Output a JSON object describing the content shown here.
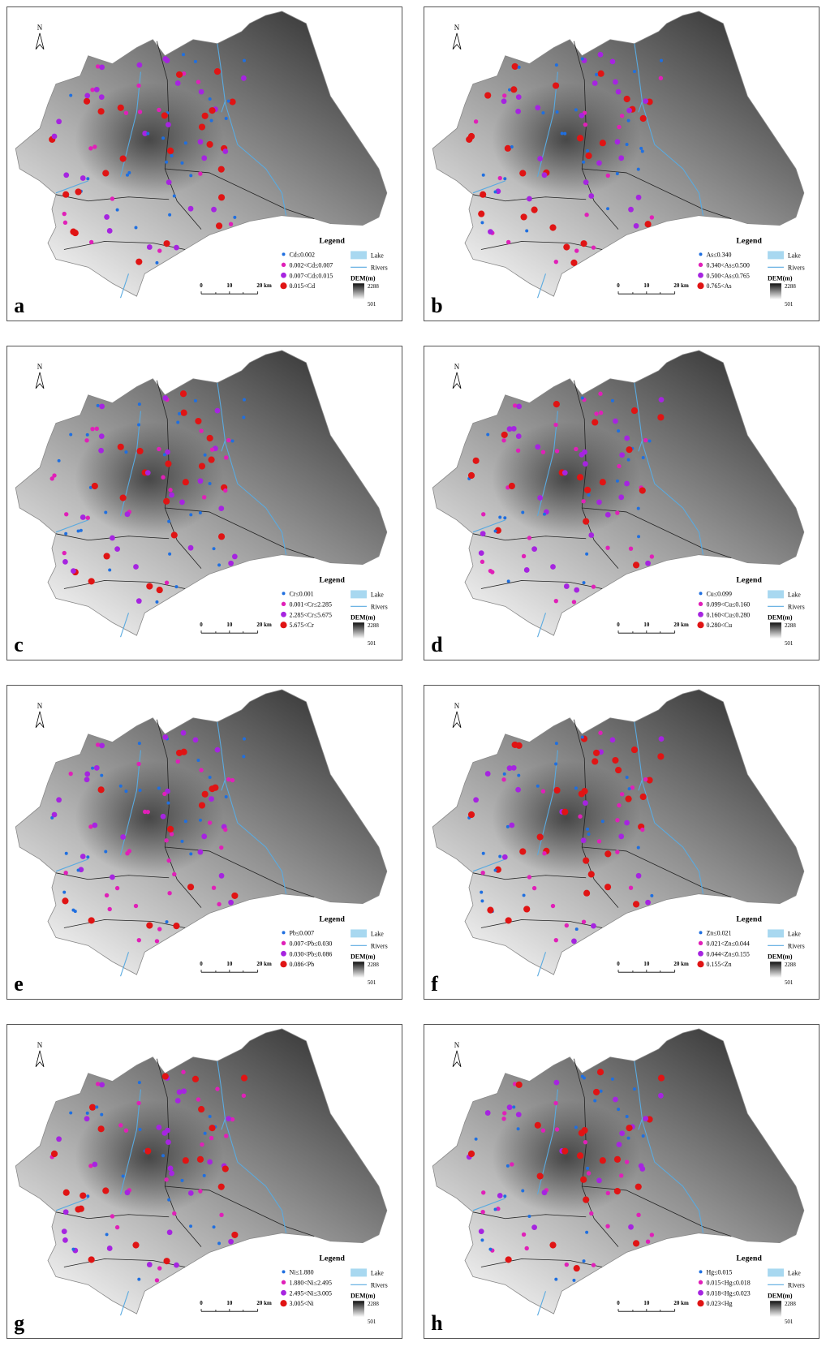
{
  "north_label": "N",
  "legend_title": "Legend",
  "lake": "Lake",
  "rivers": "Rivers",
  "dem_title": "DEM(m)",
  "dem_max": "2288",
  "dem_min": "501",
  "scale_labels": [
    "0",
    "10",
    "20 km"
  ],
  "class_colors": [
    "#1f6fe0",
    "#e020b8",
    "#a624e0",
    "#e01414"
  ],
  "panels": [
    {
      "label": "a",
      "classes": [
        "Cd≤0.002",
        "0.002<Cd≤0.007",
        "0.007<Cd≤0.015",
        "0.015<Cd"
      ]
    },
    {
      "label": "b",
      "classes": [
        "As≤0.340",
        "0.340<As≤0.500",
        "0.500<As≤0.765",
        "0.765<As"
      ]
    },
    {
      "label": "c",
      "classes": [
        "Cr≤0.001",
        "0.001<Cr≤2.285",
        "2.285<Cr≤5.675",
        "5.675<Cr"
      ]
    },
    {
      "label": "d",
      "classes": [
        "Cu≤0.099",
        "0.099<Cu≤0.160",
        "0.160<Cu≤0.280",
        "0.280<Cu"
      ]
    },
    {
      "label": "e",
      "classes": [
        "Pb≤0.007",
        "0.007<Pb≤0.030",
        "0.030<Pb≤0.086",
        "0.086<Pb"
      ]
    },
    {
      "label": "f",
      "classes": [
        "Zn≤0.021",
        "0.021<Zn≤0.044",
        "0.044<Zn≤0.155",
        "0.155<Zn"
      ]
    },
    {
      "label": "g",
      "classes": [
        "Ni≤1.880",
        "1.880<Ni≤2.495",
        "2.495<Ni≤3.005",
        "3.005<Ni"
      ]
    },
    {
      "label": "h",
      "classes": [
        "Hg≤0.015",
        "0.015<Hg≤0.018",
        "0.018<Hg≤0.023",
        "0.023<Hg"
      ]
    }
  ]
}
